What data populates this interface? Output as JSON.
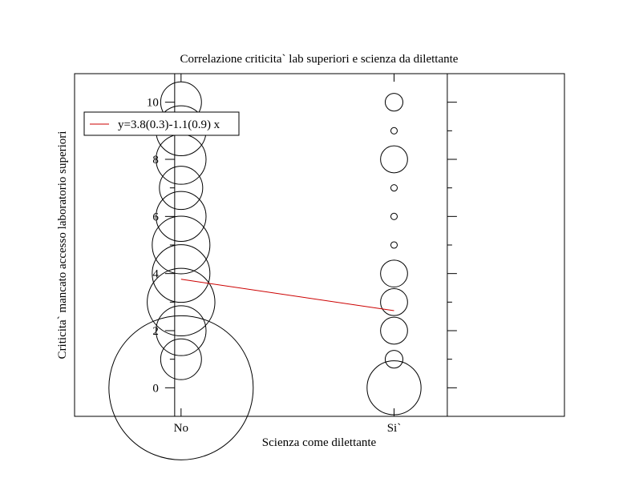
{
  "chart_data": {
    "type": "scatter",
    "title": "Correlazione criticita` lab superiori e scienza da dilettante",
    "xlabel": "Scienza come dilettante",
    "ylabel": "Criticita` mancato accesso laboratorio superiori",
    "xlim": [
      -0.5,
      1.8
    ],
    "ylim": [
      -1,
      11
    ],
    "categories": [
      "No",
      "Si`"
    ],
    "yticks": [
      0,
      2,
      4,
      6,
      8,
      10
    ],
    "yminor_ticks": [
      1,
      3,
      5,
      7,
      9
    ],
    "grid": false,
    "legend": {
      "position": "top-left",
      "label": "y=3.8(0.3)-1.1(0.9) x",
      "color": "#cc0000"
    },
    "series": [
      {
        "points": [
          {
            "x": 0,
            "y": 0,
            "size": 100
          },
          {
            "x": 0,
            "y": 1,
            "size": 8
          },
          {
            "x": 0,
            "y": 2,
            "size": 12
          },
          {
            "x": 0,
            "y": 3,
            "size": 22
          },
          {
            "x": 0,
            "y": 4,
            "size": 16
          },
          {
            "x": 0,
            "y": 5,
            "size": 16
          },
          {
            "x": 0,
            "y": 6,
            "size": 12
          },
          {
            "x": 0,
            "y": 7,
            "size": 9
          },
          {
            "x": 0,
            "y": 8,
            "size": 12
          },
          {
            "x": 0,
            "y": 9,
            "size": 12
          },
          {
            "x": 0,
            "y": 10,
            "size": 8
          },
          {
            "x": 1,
            "y": 0,
            "size": 14
          },
          {
            "x": 1,
            "y": 1,
            "size": 1.5
          },
          {
            "x": 1,
            "y": 2,
            "size": 3.5
          },
          {
            "x": 1,
            "y": 3,
            "size": 3.5
          },
          {
            "x": 1,
            "y": 4,
            "size": 3.5
          },
          {
            "x": 1,
            "y": 5,
            "size": 0.2
          },
          {
            "x": 1,
            "y": 6,
            "size": 0.2
          },
          {
            "x": 1,
            "y": 7,
            "size": 0.2
          },
          {
            "x": 1,
            "y": 8,
            "size": 3.5
          },
          {
            "x": 1,
            "y": 9,
            "size": 0.2
          },
          {
            "x": 1,
            "y": 10,
            "size": 1.5
          }
        ]
      }
    ],
    "fit_line": {
      "intercept": 3.8,
      "slope": -1.1,
      "x_range": [
        0,
        1
      ],
      "color": "#cc0000"
    }
  }
}
